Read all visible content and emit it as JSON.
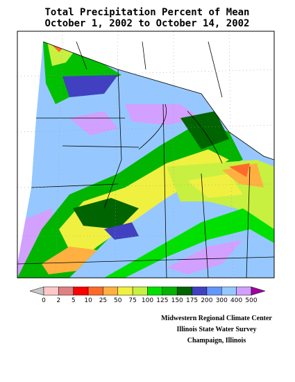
{
  "header": {
    "title": [
      "Total Precipitation Percent of Mean",
      "October 1, 2002 to October 14, 2002"
    ]
  },
  "legend": {
    "ticks": [
      0,
      2,
      5,
      10,
      25,
      50,
      75,
      100,
      125,
      150,
      175,
      200,
      300,
      400,
      500
    ],
    "under_color": "#c8c8c8",
    "colors": [
      "#ffc8c8",
      "#e08080",
      "#ff0000",
      "#ff6a2a",
      "#ffb040",
      "#f0f040",
      "#c8f040",
      "#00e000",
      "#00b400",
      "#006400",
      "#4040c0",
      "#6496ff",
      "#96c8ff",
      "#d2a0ff"
    ],
    "over_color": "#a000a0"
  },
  "credits": [
    "Midwestern Regional Climate Center",
    "Illinois State Water Survey",
    "Champaign, Illinois"
  ]
}
